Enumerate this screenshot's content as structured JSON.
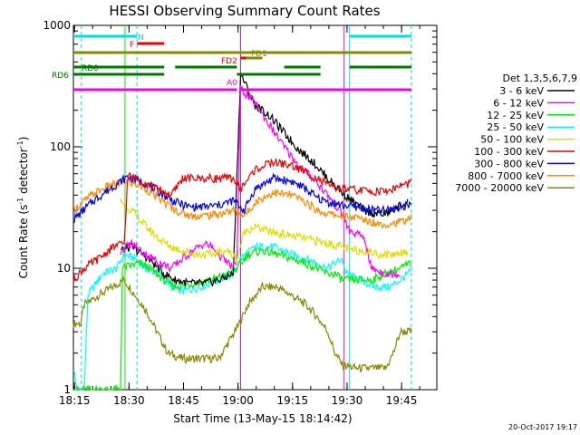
{
  "chart_data": {
    "type": "line",
    "title": "HESSI Observing Summary Count Rates",
    "xlabel": "Start Time (13-May-15 18:14:42)",
    "ylabel_main": "Count Rate (s",
    "ylabel_sup1": "-1",
    "ylabel_mid": " detector",
    "ylabel_sup2": "-1",
    "ylabel_end": ")",
    "y_scale": "log",
    "xlim_minutes": [
      0,
      100
    ],
    "ylim": [
      1,
      1000
    ],
    "x_ticks": [
      {
        "m": 0.3,
        "label": "18:15"
      },
      {
        "m": 15.3,
        "label": "18:30"
      },
      {
        "m": 30.3,
        "label": "18:45"
      },
      {
        "m": 45.3,
        "label": "19:00"
      },
      {
        "m": 60.3,
        "label": "19:15"
      },
      {
        "m": 75.3,
        "label": "19:30"
      },
      {
        "m": 90.3,
        "label": "19:45"
      }
    ],
    "y_ticks": [
      {
        "v": 1,
        "label": "1"
      },
      {
        "v": 10,
        "label": "10"
      },
      {
        "v": 100,
        "label": "100"
      },
      {
        "v": 1000,
        "label": "1000"
      }
    ],
    "legend": {
      "header": "Det 1,3,5,6,7,9",
      "entries": [
        {
          "label": "3 - 6 keV",
          "color": "#000000"
        },
        {
          "label": "6 - 12 keV",
          "color": "#ff00ff"
        },
        {
          "label": "12 - 25 keV",
          "color": "#00ee00"
        },
        {
          "label": "25 - 50 keV",
          "color": "#00ffff"
        },
        {
          "label": "50 - 100 keV",
          "color": "#dddd00"
        },
        {
          "label": "100 - 300 keV",
          "color": "#ee0000"
        },
        {
          "label": "300 - 800 keV",
          "color": "#0000ee"
        },
        {
          "label": "800 - 7000 keV",
          "color": "#ff8800"
        },
        {
          "label": "7000 - 20000 keV",
          "color": "#888800"
        }
      ]
    },
    "series": [
      {
        "color": "#888800",
        "points": [
          [
            0,
            3.5
          ],
          [
            2,
            3.5
          ],
          [
            3,
            5
          ],
          [
            7,
            6
          ],
          [
            14,
            8
          ],
          [
            17,
            6
          ],
          [
            20,
            4.5
          ],
          [
            23,
            3
          ],
          [
            26,
            2
          ],
          [
            30,
            1.8
          ],
          [
            40,
            1.8
          ],
          [
            45,
            3.2
          ],
          [
            48,
            5
          ],
          [
            52,
            7
          ],
          [
            56,
            7
          ],
          [
            60,
            6
          ],
          [
            64,
            5
          ],
          [
            67,
            4
          ],
          [
            70,
            3
          ],
          [
            72,
            2
          ],
          [
            74,
            1.6
          ],
          [
            78,
            1.5
          ],
          [
            82,
            1.5
          ],
          [
            86,
            1.5
          ],
          [
            88,
            2
          ],
          [
            90,
            3
          ],
          [
            93,
            3
          ]
        ]
      },
      {
        "color": "#00ffff",
        "points": [
          [
            0,
            1.5
          ],
          [
            1,
            1
          ],
          [
            3,
            1
          ],
          [
            4,
            6
          ],
          [
            8,
            9
          ],
          [
            12,
            10
          ],
          [
            14,
            13
          ],
          [
            17,
            12
          ],
          [
            20,
            10
          ],
          [
            24,
            9
          ],
          [
            27,
            7
          ],
          [
            30,
            6.5
          ],
          [
            35,
            7
          ],
          [
            40,
            8
          ],
          [
            44,
            9
          ],
          [
            46,
            12
          ],
          [
            50,
            15
          ],
          [
            55,
            15
          ],
          [
            60,
            13
          ],
          [
            64,
            12
          ],
          [
            67,
            11
          ],
          [
            70,
            10
          ],
          [
            72,
            11
          ],
          [
            74,
            12
          ],
          [
            75,
            9
          ],
          [
            79,
            8
          ],
          [
            83,
            7
          ],
          [
            87,
            7
          ],
          [
            90,
            8
          ],
          [
            93,
            9.5
          ]
        ]
      },
      {
        "color": "#00ee00",
        "points": [
          [
            0,
            1
          ],
          [
            13,
            1
          ],
          [
            13.5,
            10
          ],
          [
            18,
            11
          ],
          [
            21,
            10
          ],
          [
            25,
            8
          ],
          [
            28,
            7
          ],
          [
            33,
            7.5
          ],
          [
            38,
            8
          ],
          [
            43,
            9
          ],
          [
            45,
            10
          ],
          [
            48,
            13
          ],
          [
            52,
            14
          ],
          [
            56,
            13
          ],
          [
            60,
            12
          ],
          [
            64,
            11
          ],
          [
            67,
            10
          ],
          [
            70,
            9
          ],
          [
            72,
            9
          ],
          [
            74,
            8
          ],
          [
            78,
            8
          ],
          [
            82,
            8
          ],
          [
            86,
            9
          ],
          [
            90,
            10
          ],
          [
            93,
            11
          ]
        ]
      },
      {
        "color": "#000000",
        "points": [
          [
            13,
            14
          ],
          [
            16,
            15
          ],
          [
            19,
            13
          ],
          [
            22,
            11
          ],
          [
            25,
            9
          ],
          [
            28,
            8
          ],
          [
            32,
            7.5
          ],
          [
            36,
            7.5
          ],
          [
            40,
            8
          ],
          [
            44,
            9
          ],
          [
            46,
            400
          ],
          [
            50,
            220
          ],
          [
            54,
            180
          ],
          [
            58,
            130
          ],
          [
            62,
            95
          ],
          [
            66,
            75
          ],
          [
            70,
            55
          ],
          [
            74,
            42
          ],
          [
            77,
            35
          ],
          [
            80,
            30
          ],
          [
            83,
            28
          ],
          [
            86,
            28
          ],
          [
            88,
            30
          ],
          [
            90,
            33
          ],
          [
            92,
            35
          ]
        ]
      },
      {
        "color": "#ff00ff",
        "points": [
          [
            13,
            14
          ],
          [
            16,
            16
          ],
          [
            20,
            13
          ],
          [
            24,
            11
          ],
          [
            27,
            10
          ],
          [
            30,
            12
          ],
          [
            33,
            14
          ],
          [
            36,
            16
          ],
          [
            38,
            15
          ],
          [
            40,
            13
          ],
          [
            44,
            10
          ],
          [
            45,
            12
          ],
          [
            46,
            300
          ],
          [
            50,
            230
          ],
          [
            54,
            150
          ],
          [
            58,
            100
          ],
          [
            62,
            70
          ],
          [
            66,
            55
          ],
          [
            70,
            40
          ],
          [
            74,
            28
          ],
          [
            76,
            20
          ],
          [
            80,
            18
          ],
          [
            82,
            10
          ],
          [
            86,
            9
          ],
          [
            88,
            9
          ],
          [
            90,
            9
          ]
        ]
      },
      {
        "color": "#dddd00",
        "points": [
          [
            13,
            36
          ],
          [
            16,
            30
          ],
          [
            20,
            22
          ],
          [
            24,
            17
          ],
          [
            27,
            15
          ],
          [
            30,
            14
          ],
          [
            34,
            13
          ],
          [
            38,
            13
          ],
          [
            42,
            14
          ],
          [
            45,
            12
          ],
          [
            47,
            20
          ],
          [
            50,
            22
          ],
          [
            54,
            20
          ],
          [
            58,
            19
          ],
          [
            62,
            18
          ],
          [
            66,
            17
          ],
          [
            70,
            16
          ],
          [
            74,
            15
          ],
          [
            77,
            14
          ],
          [
            80,
            14
          ],
          [
            84,
            13
          ],
          [
            88,
            13
          ],
          [
            92,
            14
          ]
        ]
      },
      {
        "color": "#ff8800",
        "points": [
          [
            0,
            30
          ],
          [
            5,
            40
          ],
          [
            10,
            48
          ],
          [
            15,
            52
          ],
          [
            20,
            45
          ],
          [
            25,
            35
          ],
          [
            28,
            30
          ],
          [
            32,
            27
          ],
          [
            36,
            27
          ],
          [
            40,
            28
          ],
          [
            44,
            30
          ],
          [
            47,
            27
          ],
          [
            50,
            35
          ],
          [
            55,
            42
          ],
          [
            60,
            40
          ],
          [
            64,
            35
          ],
          [
            67,
            30
          ],
          [
            70,
            28
          ],
          [
            74,
            27
          ],
          [
            78,
            26
          ],
          [
            82,
            24
          ],
          [
            86,
            23
          ],
          [
            90,
            24
          ],
          [
            93,
            26
          ]
        ]
      },
      {
        "color": "#0000ee",
        "points": [
          [
            0,
            25
          ],
          [
            5,
            35
          ],
          [
            10,
            45
          ],
          [
            15,
            57
          ],
          [
            20,
            50
          ],
          [
            25,
            40
          ],
          [
            28,
            35
          ],
          [
            32,
            32
          ],
          [
            36,
            32
          ],
          [
            40,
            33
          ],
          [
            44,
            36
          ],
          [
            47,
            30
          ],
          [
            50,
            45
          ],
          [
            55,
            55
          ],
          [
            60,
            52
          ],
          [
            64,
            45
          ],
          [
            67,
            38
          ],
          [
            70,
            35
          ],
          [
            74,
            33
          ],
          [
            78,
            32
          ],
          [
            82,
            30
          ],
          [
            86,
            30
          ],
          [
            90,
            32
          ],
          [
            93,
            34
          ]
        ]
      },
      {
        "color": "#ee0000",
        "points": [
          [
            0,
            8
          ],
          [
            3,
            10
          ],
          [
            7,
            12
          ],
          [
            11,
            15
          ],
          [
            14,
            16
          ],
          [
            15,
            58
          ],
          [
            19,
            52
          ],
          [
            23,
            45
          ],
          [
            27,
            40
          ],
          [
            30,
            55
          ],
          [
            35,
            55
          ],
          [
            40,
            55
          ],
          [
            44,
            55
          ],
          [
            46,
            45
          ],
          [
            50,
            65
          ],
          [
            55,
            75
          ],
          [
            60,
            70
          ],
          [
            64,
            62
          ],
          [
            67,
            55
          ],
          [
            70,
            48
          ],
          [
            74,
            45
          ],
          [
            78,
            44
          ],
          [
            82,
            43
          ],
          [
            86,
            43
          ],
          [
            88,
            45
          ],
          [
            90,
            48
          ],
          [
            93,
            50
          ]
        ]
      }
    ],
    "flag_bars": [
      {
        "label": "N",
        "color": "#00dddd",
        "segments": [
          [
            0,
            17.5
          ],
          [
            76,
            93
          ]
        ]
      },
      {
        "label": "F",
        "color": "#ee0000",
        "segments": [
          [
            17.5,
            25
          ]
        ]
      },
      {
        "label": "",
        "color": "#888800",
        "segments": [
          [
            0,
            93
          ]
        ]
      },
      {
        "label": "FD2",
        "color": "#ee0000",
        "segments": [
          [
            46,
            47.5
          ]
        ]
      },
      {
        "label": "FD1",
        "color": "#888800",
        "segments": [
          [
            47.5,
            52
          ]
        ]
      },
      {
        "label": "RD0",
        "color": "#007700",
        "segments": [
          [
            0,
            25
          ],
          [
            28,
            45
          ],
          [
            58,
            68
          ],
          [
            76,
            93
          ]
        ]
      },
      {
        "label": "RD6",
        "color": "#007700",
        "segments": [
          [
            0,
            25
          ],
          [
            45,
            68
          ]
        ]
      },
      {
        "label": "A0",
        "color": "#ee00ee",
        "segments": [
          [
            0,
            45
          ],
          [
            46,
            93
          ]
        ]
      }
    ]
  },
  "footer": {
    "datestamp": "20-Oct-2017 19:17"
  }
}
